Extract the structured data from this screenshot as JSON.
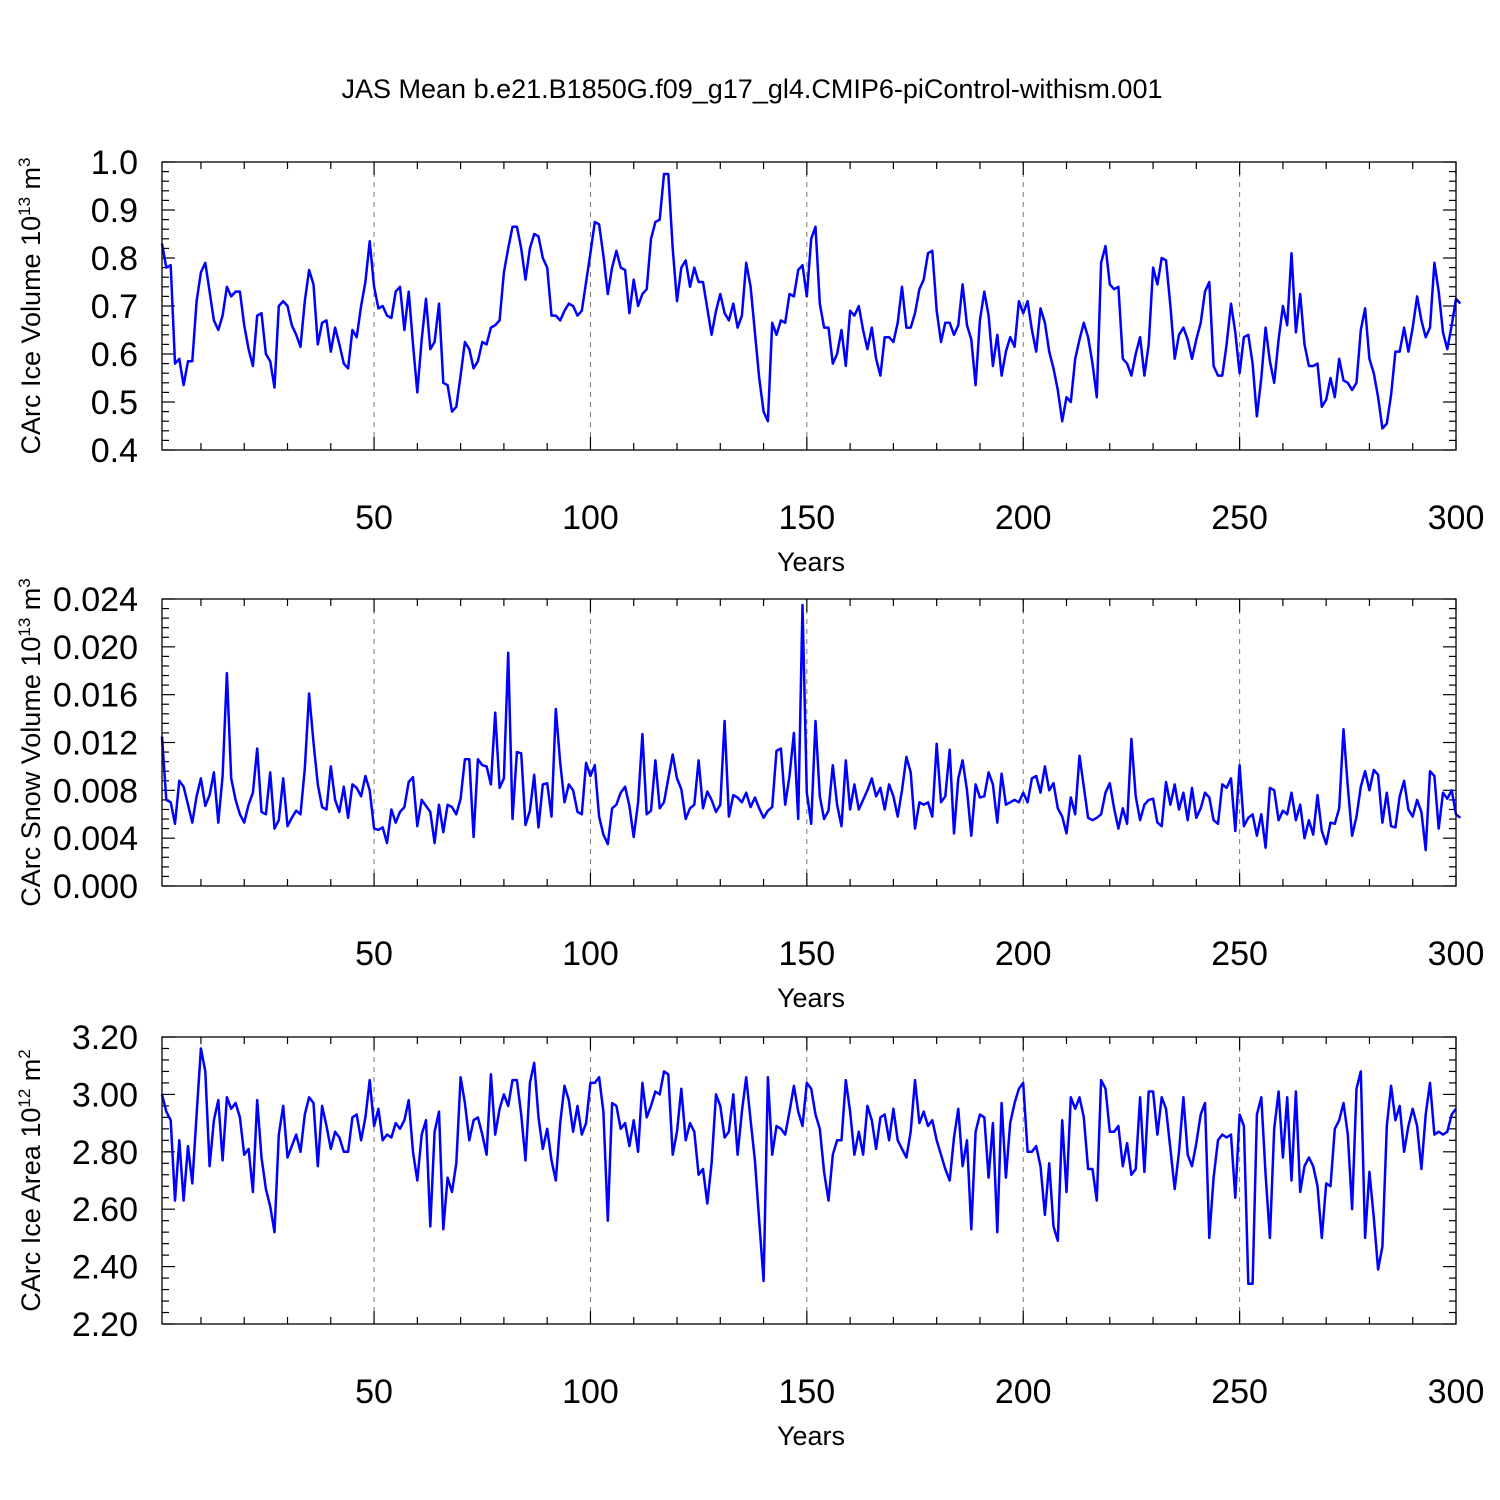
{
  "title": "JAS Mean b.e21.B1850G.f09_g17_gl4.CMIP6-piControl-withism.001",
  "colors": {
    "series": "#0000ff"
  },
  "chart_data": [
    {
      "type": "line",
      "title": "JAS Mean b.e21.B1850G.f09_g17_gl4.CMIP6-piControl-withism.001",
      "xlabel": "Years",
      "ylabel": "CArc Ice Volume 10",
      "ylabel_sup": "13",
      "ylabel_unit": " m",
      "ylabel_unit_sup": "3",
      "xlim": [
        1,
        300
      ],
      "ylim": [
        0.4,
        1.0
      ],
      "xticks": [
        "50",
        "100",
        "150",
        "200",
        "250",
        "300"
      ],
      "yticks": [
        "0.4",
        "0.5",
        "0.6",
        "0.7",
        "0.8",
        "0.9",
        "1.0"
      ],
      "grid": "vertical dashed at major x ticks",
      "series": [
        {
          "x_start": 1,
          "values": [
            0.83,
            0.78,
            0.785,
            0.58,
            0.59,
            0.535,
            0.585,
            0.585,
            0.71,
            0.77,
            0.79,
            0.73,
            0.67,
            0.65,
            0.68,
            0.74,
            0.72,
            0.73,
            0.73,
            0.66,
            0.61,
            0.575,
            0.68,
            0.685,
            0.6,
            0.585,
            0.53,
            0.7,
            0.71,
            0.7,
            0.66,
            0.64,
            0.615,
            0.71,
            0.775,
            0.745,
            0.62,
            0.665,
            0.67,
            0.605,
            0.655,
            0.62,
            0.58,
            0.57,
            0.65,
            0.635,
            0.7,
            0.75,
            0.835,
            0.74,
            0.695,
            0.7,
            0.68,
            0.675,
            0.73,
            0.74,
            0.65,
            0.73,
            0.62,
            0.52,
            0.63,
            0.715,
            0.61,
            0.625,
            0.705,
            0.54,
            0.535,
            0.48,
            0.49,
            0.555,
            0.625,
            0.61,
            0.57,
            0.585,
            0.625,
            0.62,
            0.655,
            0.66,
            0.67,
            0.77,
            0.82,
            0.865,
            0.865,
            0.82,
            0.755,
            0.82,
            0.85,
            0.845,
            0.8,
            0.78,
            0.68,
            0.68,
            0.67,
            0.69,
            0.705,
            0.7,
            0.68,
            0.69,
            0.75,
            0.81,
            0.875,
            0.87,
            0.805,
            0.725,
            0.78,
            0.815,
            0.78,
            0.775,
            0.685,
            0.755,
            0.7,
            0.725,
            0.735,
            0.84,
            0.875,
            0.88,
            0.975,
            0.975,
            0.82,
            0.71,
            0.78,
            0.795,
            0.74,
            0.78,
            0.75,
            0.75,
            0.695,
            0.64,
            0.69,
            0.725,
            0.685,
            0.67,
            0.705,
            0.655,
            0.68,
            0.79,
            0.74,
            0.645,
            0.55,
            0.48,
            0.46,
            0.665,
            0.64,
            0.67,
            0.665,
            0.725,
            0.72,
            0.775,
            0.785,
            0.72,
            0.84,
            0.865,
            0.705,
            0.655,
            0.655,
            0.58,
            0.6,
            0.65,
            0.575,
            0.69,
            0.68,
            0.7,
            0.65,
            0.61,
            0.655,
            0.59,
            0.555,
            0.635,
            0.635,
            0.625,
            0.665,
            0.74,
            0.655,
            0.655,
            0.685,
            0.735,
            0.755,
            0.81,
            0.815,
            0.69,
            0.625,
            0.665,
            0.665,
            0.64,
            0.66,
            0.745,
            0.66,
            0.63,
            0.535,
            0.67,
            0.73,
            0.68,
            0.575,
            0.64,
            0.555,
            0.605,
            0.635,
            0.615,
            0.71,
            0.685,
            0.71,
            0.65,
            0.605,
            0.695,
            0.665,
            0.605,
            0.57,
            0.525,
            0.46,
            0.51,
            0.5,
            0.59,
            0.63,
            0.665,
            0.635,
            0.58,
            0.51,
            0.79,
            0.825,
            0.745,
            0.735,
            0.74,
            0.59,
            0.58,
            0.555,
            0.6,
            0.635,
            0.555,
            0.62,
            0.78,
            0.745,
            0.8,
            0.795,
            0.7,
            0.59,
            0.64,
            0.655,
            0.63,
            0.59,
            0.63,
            0.665,
            0.73,
            0.75,
            0.575,
            0.555,
            0.555,
            0.62,
            0.705,
            0.645,
            0.56,
            0.635,
            0.64,
            0.58,
            0.47,
            0.55,
            0.655,
            0.585,
            0.54,
            0.63,
            0.7,
            0.66,
            0.81,
            0.645,
            0.725,
            0.62,
            0.575,
            0.575,
            0.58,
            0.49,
            0.505,
            0.55,
            0.51,
            0.59,
            0.545,
            0.54,
            0.525,
            0.54,
            0.65,
            0.695,
            0.59,
            0.56,
            0.51,
            0.445,
            0.455,
            0.515,
            0.605,
            0.605,
            0.655,
            0.605,
            0.655,
            0.72,
            0.67,
            0.635,
            0.655,
            0.79,
            0.73,
            0.645,
            0.61,
            0.66,
            0.715,
            0.705
          ]
        }
      ]
    },
    {
      "type": "line",
      "xlabel": "Years",
      "ylabel": "CArc Snow Volume 10",
      "ylabel_sup": "13",
      "ylabel_unit": " m",
      "ylabel_unit_sup": "3",
      "xlim": [
        1,
        300
      ],
      "ylim": [
        0.0,
        0.024
      ],
      "xticks": [
        "50",
        "100",
        "150",
        "200",
        "250",
        "300"
      ],
      "yticks": [
        "0.000",
        "0.004",
        "0.008",
        "0.012",
        "0.016",
        "0.020",
        "0.024"
      ],
      "grid": "vertical dashed at major x ticks",
      "series": [
        {
          "x_start": 1,
          "values": [
            0.0125,
            0.0072,
            0.007,
            0.0052,
            0.0088,
            0.0083,
            0.0068,
            0.0053,
            0.0075,
            0.009,
            0.0067,
            0.0076,
            0.0095,
            0.0053,
            0.0092,
            0.0178,
            0.009,
            0.0072,
            0.006,
            0.0053,
            0.0068,
            0.0078,
            0.0115,
            0.0062,
            0.006,
            0.0095,
            0.0048,
            0.0055,
            0.009,
            0.005,
            0.0057,
            0.0063,
            0.006,
            0.0098,
            0.0161,
            0.012,
            0.0085,
            0.0066,
            0.0064,
            0.01,
            0.0072,
            0.0062,
            0.0083,
            0.0057,
            0.0085,
            0.0082,
            0.0075,
            0.0092,
            0.008,
            0.0048,
            0.0047,
            0.0049,
            0.0036,
            0.0064,
            0.0053,
            0.0062,
            0.0066,
            0.0087,
            0.0091,
            0.005,
            0.0072,
            0.0067,
            0.0062,
            0.0036,
            0.0068,
            0.0045,
            0.0068,
            0.0066,
            0.006,
            0.0073,
            0.0106,
            0.0106,
            0.0041,
            0.0106,
            0.0101,
            0.01,
            0.0085,
            0.0145,
            0.0082,
            0.009,
            0.0195,
            0.0056,
            0.0112,
            0.0111,
            0.0051,
            0.0063,
            0.0093,
            0.0049,
            0.0085,
            0.0086,
            0.0058,
            0.0148,
            0.0103,
            0.007,
            0.0085,
            0.008,
            0.0062,
            0.006,
            0.0103,
            0.0092,
            0.0101,
            0.0058,
            0.0043,
            0.0035,
            0.0065,
            0.0068,
            0.0078,
            0.0083,
            0.0067,
            0.0041,
            0.007,
            0.0127,
            0.006,
            0.0063,
            0.0105,
            0.0065,
            0.007,
            0.009,
            0.011,
            0.009,
            0.0081,
            0.0056,
            0.0065,
            0.0068,
            0.0105,
            0.0065,
            0.0079,
            0.0072,
            0.0062,
            0.0068,
            0.0138,
            0.0058,
            0.0076,
            0.0074,
            0.007,
            0.0078,
            0.0066,
            0.0074,
            0.0065,
            0.0057,
            0.0063,
            0.0066,
            0.0113,
            0.0115,
            0.0068,
            0.0092,
            0.0128,
            0.0056,
            0.0235,
            0.0078,
            0.0052,
            0.0138,
            0.0075,
            0.0056,
            0.0063,
            0.0101,
            0.0068,
            0.005,
            0.0105,
            0.0064,
            0.0085,
            0.0064,
            0.0072,
            0.008,
            0.009,
            0.0075,
            0.0082,
            0.0064,
            0.0085,
            0.0075,
            0.0058,
            0.008,
            0.0108,
            0.0095,
            0.0048,
            0.007,
            0.0068,
            0.007,
            0.0058,
            0.0119,
            0.007,
            0.0075,
            0.0114,
            0.0044,
            0.009,
            0.0105,
            0.008,
            0.0042,
            0.0085,
            0.0074,
            0.0075,
            0.0095,
            0.0085,
            0.0053,
            0.0094,
            0.0068,
            0.007,
            0.0072,
            0.007,
            0.0078,
            0.007,
            0.009,
            0.0092,
            0.0078,
            0.01,
            0.008,
            0.0086,
            0.0065,
            0.0058,
            0.0044,
            0.0074,
            0.006,
            0.0109,
            0.0083,
            0.0057,
            0.0055,
            0.0057,
            0.006,
            0.0078,
            0.0086,
            0.0065,
            0.0048,
            0.0065,
            0.0052,
            0.0123,
            0.0075,
            0.0055,
            0.0068,
            0.0072,
            0.0073,
            0.0053,
            0.005,
            0.0087,
            0.0068,
            0.0085,
            0.0064,
            0.0078,
            0.0055,
            0.0082,
            0.0057,
            0.0065,
            0.0078,
            0.0074,
            0.0055,
            0.0052,
            0.0085,
            0.0082,
            0.009,
            0.0046,
            0.0101,
            0.005,
            0.0057,
            0.006,
            0.0042,
            0.006,
            0.0032,
            0.0082,
            0.008,
            0.0055,
            0.0063,
            0.006,
            0.0078,
            0.0055,
            0.0068,
            0.004,
            0.0055,
            0.0043,
            0.0076,
            0.0046,
            0.0035,
            0.0053,
            0.0052,
            0.0065,
            0.0131,
            0.0083,
            0.0042,
            0.0058,
            0.0083,
            0.0096,
            0.008,
            0.0097,
            0.0093,
            0.0053,
            0.0078,
            0.005,
            0.0049,
            0.0075,
            0.0088,
            0.0064,
            0.0058,
            0.0072,
            0.0062,
            0.003,
            0.0096,
            0.0092,
            0.0048,
            0.0078,
            0.0073,
            0.008,
            0.006,
            0.0057
          ]
        }
      ]
    },
    {
      "type": "line",
      "xlabel": "Years",
      "ylabel": "CArc Ice Area 10",
      "ylabel_sup": "12",
      "ylabel_unit": " m",
      "ylabel_unit_sup": "2",
      "xlim": [
        1,
        300
      ],
      "ylim": [
        2.2,
        3.2
      ],
      "xticks": [
        "50",
        "100",
        "150",
        "200",
        "250",
        "300"
      ],
      "yticks": [
        "2.20",
        "2.40",
        "2.60",
        "2.80",
        "3.00",
        "3.20"
      ],
      "grid": "vertical dashed at major x ticks",
      "series": [
        {
          "x_start": 1,
          "values": [
            3.0,
            2.94,
            2.91,
            2.63,
            2.84,
            2.63,
            2.82,
            2.69,
            2.93,
            3.16,
            3.08,
            2.75,
            2.91,
            2.98,
            2.77,
            2.99,
            2.95,
            2.97,
            2.92,
            2.79,
            2.81,
            2.66,
            2.98,
            2.78,
            2.67,
            2.61,
            2.52,
            2.86,
            2.96,
            2.78,
            2.82,
            2.86,
            2.8,
            2.93,
            2.99,
            2.97,
            2.75,
            2.96,
            2.89,
            2.81,
            2.87,
            2.85,
            2.8,
            2.8,
            2.92,
            2.93,
            2.84,
            2.92,
            3.05,
            2.89,
            2.95,
            2.84,
            2.86,
            2.85,
            2.9,
            2.88,
            2.91,
            2.98,
            2.8,
            2.7,
            2.86,
            2.91,
            2.54,
            2.87,
            2.94,
            2.53,
            2.71,
            2.66,
            2.76,
            3.06,
            2.97,
            2.84,
            2.91,
            2.92,
            2.86,
            2.79,
            3.07,
            2.86,
            2.95,
            3.0,
            2.96,
            3.05,
            3.05,
            2.93,
            2.77,
            3.04,
            3.11,
            2.92,
            2.81,
            2.88,
            2.77,
            2.7,
            2.9,
            3.03,
            2.98,
            2.87,
            2.96,
            2.86,
            2.9,
            3.04,
            3.04,
            3.06,
            2.94,
            2.56,
            2.97,
            2.96,
            2.88,
            2.9,
            2.82,
            2.91,
            2.8,
            3.04,
            2.92,
            2.96,
            3.01,
            3.0,
            3.08,
            3.07,
            2.79,
            2.87,
            3.02,
            2.84,
            2.9,
            2.87,
            2.72,
            2.74,
            2.62,
            2.76,
            3.0,
            2.96,
            2.85,
            2.87,
            3.0,
            2.79,
            2.94,
            3.06,
            2.91,
            2.77,
            2.56,
            2.35,
            3.06,
            2.79,
            2.89,
            2.88,
            2.86,
            2.94,
            3.03,
            2.94,
            2.89,
            3.04,
            3.02,
            2.93,
            2.88,
            2.73,
            2.63,
            2.79,
            2.84,
            2.84,
            3.05,
            2.94,
            2.79,
            2.87,
            2.79,
            2.96,
            2.91,
            2.81,
            2.92,
            2.93,
            2.84,
            2.95,
            2.84,
            2.81,
            2.78,
            2.87,
            3.05,
            2.9,
            2.94,
            2.89,
            2.91,
            2.84,
            2.79,
            2.74,
            2.7,
            2.85,
            2.95,
            2.75,
            2.84,
            2.53,
            2.87,
            2.93,
            2.92,
            2.71,
            2.9,
            2.52,
            2.97,
            2.71,
            2.9,
            2.97,
            3.02,
            3.04,
            2.8,
            2.8,
            2.82,
            2.75,
            2.58,
            2.76,
            2.54,
            2.49,
            2.91,
            2.66,
            2.99,
            2.95,
            2.99,
            2.92,
            2.74,
            2.74,
            2.63,
            3.05,
            3.02,
            2.87,
            2.87,
            2.89,
            2.75,
            2.83,
            2.72,
            2.74,
            2.99,
            2.73,
            3.01,
            3.01,
            2.86,
            2.99,
            2.95,
            2.81,
            2.67,
            2.8,
            2.99,
            2.79,
            2.75,
            2.83,
            2.93,
            2.97,
            2.5,
            2.71,
            2.84,
            2.86,
            2.85,
            2.86,
            2.64,
            2.93,
            2.89,
            2.34,
            2.34,
            2.93,
            2.99,
            2.72,
            2.5,
            2.88,
            3.01,
            2.78,
            2.99,
            2.7,
            3.01,
            2.66,
            2.75,
            2.78,
            2.75,
            2.68,
            2.5,
            2.69,
            2.68,
            2.88,
            2.91,
            2.97,
            2.86,
            2.6,
            3.02,
            3.08,
            2.5,
            2.73,
            2.57,
            2.39,
            2.47,
            2.89,
            3.03,
            2.91,
            2.96,
            2.8,
            2.89,
            2.95,
            2.89,
            2.74,
            2.93,
            3.04,
            2.86,
            2.87,
            2.86,
            2.87,
            2.93,
            2.95
          ]
        }
      ]
    }
  ]
}
